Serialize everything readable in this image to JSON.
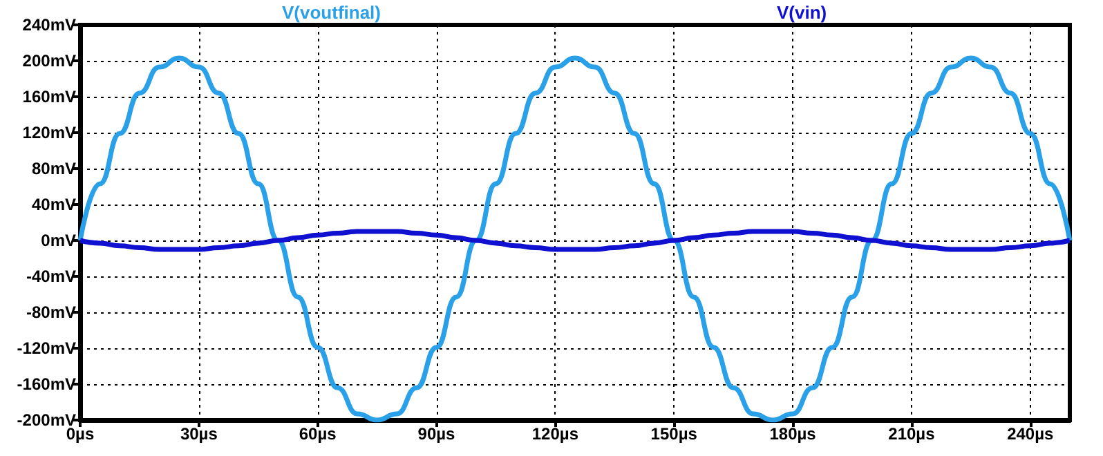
{
  "chart_data": {
    "type": "line",
    "x": [
      0,
      5,
      10,
      15,
      20,
      25,
      30,
      35,
      40,
      45,
      50,
      55,
      60,
      65,
      70,
      75,
      80,
      85,
      90,
      95,
      100,
      105,
      110,
      115,
      120,
      125,
      130,
      135,
      140,
      145,
      150,
      155,
      160,
      165,
      170,
      175,
      180,
      185,
      190,
      195,
      200,
      205,
      210,
      215,
      220,
      225,
      230,
      235,
      240,
      245,
      250
    ],
    "series": [
      {
        "name": "V(voutfinal)",
        "color": "#29a0e8",
        "values": [
          0,
          63,
          119,
          164,
          193,
          203,
          193,
          164,
          119,
          63,
          0,
          -63,
          -119,
          -164,
          -193,
          -200,
          -193,
          -164,
          -119,
          -63,
          0,
          63,
          119,
          164,
          193,
          203,
          193,
          164,
          119,
          63,
          0,
          -63,
          -119,
          -164,
          -193,
          -200,
          -193,
          -164,
          -119,
          -63,
          0,
          63,
          119,
          164,
          193,
          203,
          193,
          164,
          119,
          63,
          0
        ]
      },
      {
        "name": "V(vin)",
        "color": "#1010d0",
        "values": [
          0,
          -3,
          -6,
          -8,
          -10,
          -10,
          -10,
          -8,
          -6,
          -3,
          0,
          3,
          6,
          8,
          10,
          10,
          10,
          8,
          6,
          3,
          0,
          -3,
          -6,
          -8,
          -10,
          -10,
          -10,
          -8,
          -6,
          -3,
          0,
          3,
          6,
          8,
          10,
          10,
          10,
          8,
          6,
          3,
          0,
          -3,
          -6,
          -8,
          -10,
          -10,
          -10,
          -8,
          -6,
          -3,
          0
        ]
      }
    ],
    "xlim": [
      0,
      250
    ],
    "xticks": [
      {
        "value": 0,
        "label": "0µs"
      },
      {
        "value": 30,
        "label": "30µs"
      },
      {
        "value": 60,
        "label": "60µs"
      },
      {
        "value": 90,
        "label": "90µs"
      },
      {
        "value": 120,
        "label": "120µs"
      },
      {
        "value": 150,
        "label": "150µs"
      },
      {
        "value": 180,
        "label": "180µs"
      },
      {
        "value": 210,
        "label": "210µs"
      },
      {
        "value": 240,
        "label": "240µs"
      }
    ],
    "ylim": [
      -200,
      240
    ],
    "yticks": [
      {
        "value": -200,
        "label": "-200mV"
      },
      {
        "value": -160,
        "label": "-160mV"
      },
      {
        "value": -120,
        "label": "-120mV"
      },
      {
        "value": -80,
        "label": "-80mV"
      },
      {
        "value": -40,
        "label": "-40mV"
      },
      {
        "value": 0,
        "label": "0mV"
      },
      {
        "value": 40,
        "label": "40mV"
      },
      {
        "value": 80,
        "label": "80mV"
      },
      {
        "value": 120,
        "label": "120mV"
      },
      {
        "value": 160,
        "label": "160mV"
      },
      {
        "value": 200,
        "label": "200mV"
      },
      {
        "value": 240,
        "label": "240mV"
      }
    ],
    "grid": true,
    "legend": "top",
    "marker": "none",
    "line_style": "solid"
  }
}
